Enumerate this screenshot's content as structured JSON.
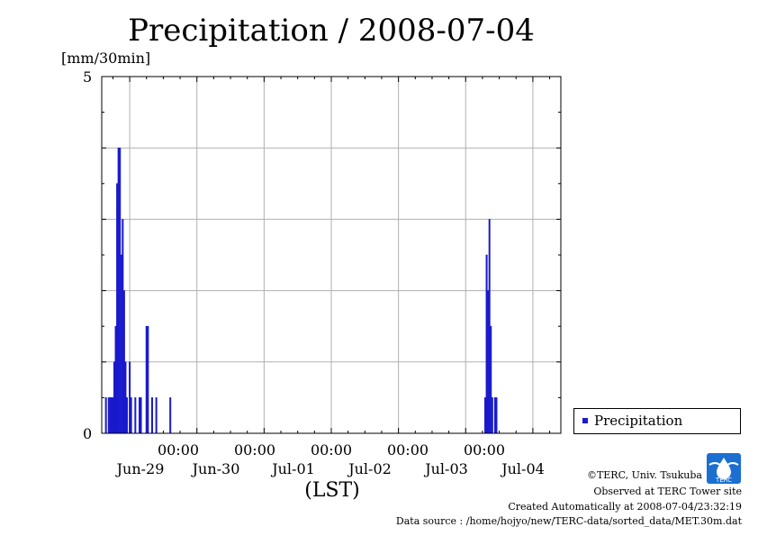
{
  "chart_data": {
    "type": "bar",
    "title": "Precipitation / 2008-07-04",
    "ylabel": "[mm/30min]",
    "xlabel": "(LST)",
    "ylim": [
      0,
      5
    ],
    "xlim_hours": [
      -10,
      154
    ],
    "yticks": [
      "5",
      "0"
    ],
    "grid": true,
    "x_time_labels": [
      "00:00",
      "00:00",
      "00:00",
      "00:00",
      "00:00"
    ],
    "x_date_labels": [
      "Jun-29",
      "Jun-30",
      "Jul-01",
      "Jul-02",
      "Jul-03",
      "Jul-04"
    ],
    "bar_color": "#1a1acc",
    "legend": {
      "label": "Precipitation",
      "position": "right"
    },
    "series": [
      {
        "name": "Precipitation",
        "points": [
          {
            "h": -8.5,
            "v": 0.5
          },
          {
            "h": -7.5,
            "v": 0.5
          },
          {
            "h": -7.0,
            "v": 0.5
          },
          {
            "h": -6.5,
            "v": 0.5
          },
          {
            "h": -6.0,
            "v": 0.5
          },
          {
            "h": -5.5,
            "v": 1.0
          },
          {
            "h": -5.0,
            "v": 1.5
          },
          {
            "h": -4.5,
            "v": 3.5
          },
          {
            "h": -4.0,
            "v": 4.0
          },
          {
            "h": -3.5,
            "v": 4.0
          },
          {
            "h": -3.0,
            "v": 2.5
          },
          {
            "h": -2.5,
            "v": 3.0
          },
          {
            "h": -2.0,
            "v": 2.0
          },
          {
            "h": -1.5,
            "v": 1.0
          },
          {
            "h": -1.0,
            "v": 0.5
          },
          {
            "h": 0.0,
            "v": 1.0
          },
          {
            "h": 0.5,
            "v": 0.5
          },
          {
            "h": 2.0,
            "v": 0.5
          },
          {
            "h": 3.5,
            "v": 0.5
          },
          {
            "h": 4.0,
            "v": 0.5
          },
          {
            "h": 6.0,
            "v": 1.5
          },
          {
            "h": 6.5,
            "v": 1.5
          },
          {
            "h": 8.0,
            "v": 0.5
          },
          {
            "h": 9.5,
            "v": 0.5
          },
          {
            "h": 14.5,
            "v": 0.5
          },
          {
            "h": 127.0,
            "v": 0.5
          },
          {
            "h": 127.5,
            "v": 2.5
          },
          {
            "h": 128.0,
            "v": 2.0
          },
          {
            "h": 128.5,
            "v": 3.0
          },
          {
            "h": 129.0,
            "v": 1.5
          },
          {
            "h": 129.5,
            "v": 0.5
          },
          {
            "h": 130.5,
            "v": 0.5
          },
          {
            "h": 131.0,
            "v": 0.5
          }
        ]
      }
    ]
  },
  "credits": {
    "copyright": "©TERC, Univ. Tsukuba",
    "site": "Observed at TERC Tower site",
    "created": "Created Automatically at 2008-07-04/23:32:19",
    "source": "Data source : /home/hojyo/new/TERC-data/sorted_data/MET.30m.dat",
    "logo_text": "TERC"
  }
}
